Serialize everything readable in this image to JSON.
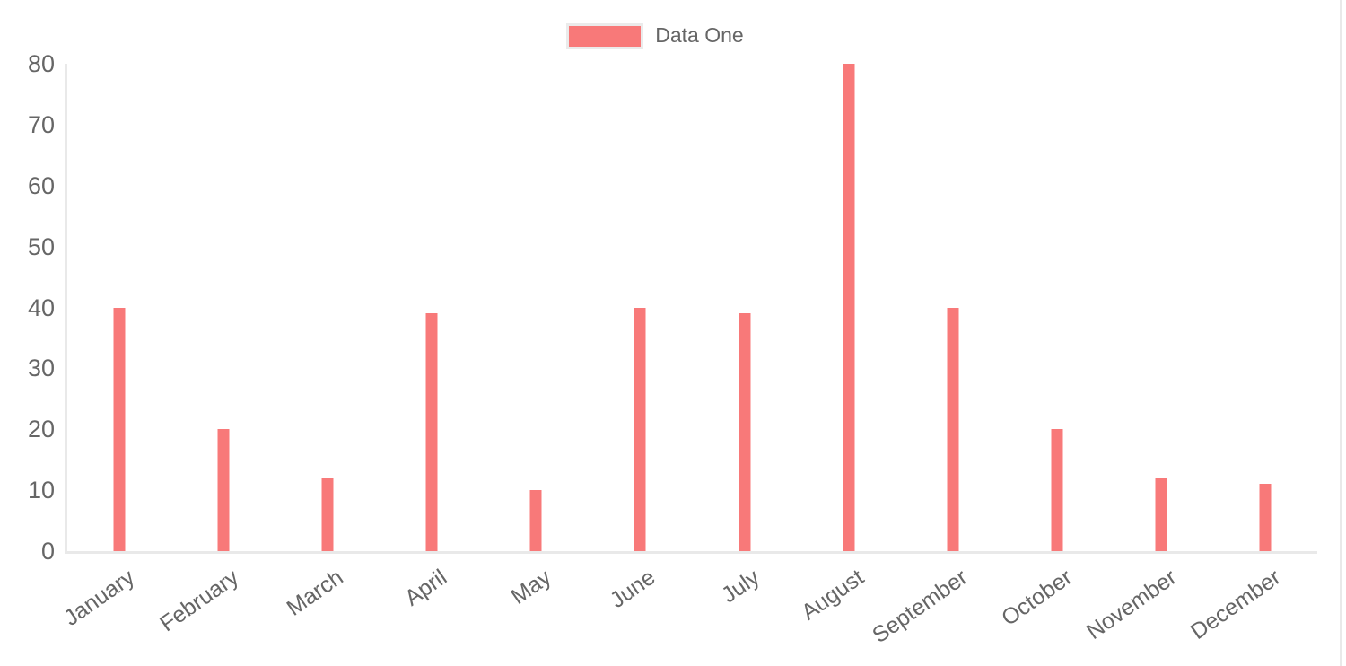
{
  "legend": {
    "items": [
      {
        "label": "Data One",
        "color": "#f87979"
      }
    ]
  },
  "chart_data": {
    "type": "bar",
    "title": "",
    "xlabel": "",
    "ylabel": "",
    "categories": [
      "January",
      "February",
      "March",
      "April",
      "May",
      "June",
      "July",
      "August",
      "September",
      "October",
      "November",
      "December"
    ],
    "series": [
      {
        "name": "Data One",
        "color": "#f87979",
        "values": [
          40,
          20,
          12,
          39,
          10,
          40,
          39,
          80,
          40,
          20,
          12,
          11
        ]
      }
    ],
    "ylim": [
      0,
      80
    ],
    "yticks": [
      0,
      10,
      20,
      30,
      40,
      50,
      60,
      70,
      80
    ],
    "grid": false,
    "legend_position": "top",
    "x_tick_rotation_deg": -35
  },
  "colors": {
    "bar": "#f87979",
    "axis_line": "#e9e9e9",
    "tick_text": "#666666",
    "legend_box_border": "#ebebeb",
    "background": "#ffffff"
  }
}
